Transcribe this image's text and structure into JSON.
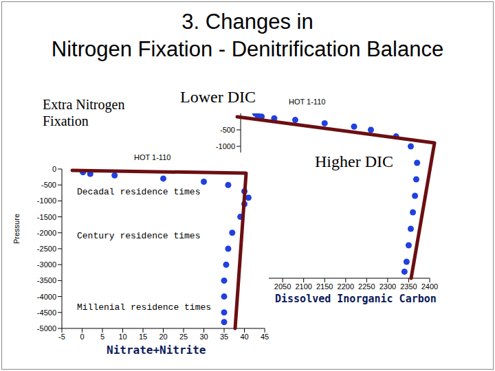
{
  "title_lines": [
    "3. Changes in",
    "Nitrogen Fixation - Denitrification Balance"
  ],
  "annotations": [
    "Extra Nitrogen Fixation",
    "Lower DIC",
    "Higher DIC"
  ],
  "chart_data": [
    {
      "type": "scatter",
      "title": "HOT 1-110",
      "x_label": "Nitrate+Nitrite",
      "y_label": "Pressure",
      "x": [
        0,
        0,
        0.2,
        2,
        8,
        20,
        30,
        36,
        40,
        41,
        40,
        39,
        37,
        36,
        35.5,
        35,
        35,
        35,
        35
      ],
      "values": [
        0,
        -50,
        -100,
        -150,
        -200,
        -300,
        -400,
        -500,
        -700,
        -900,
        -1100,
        -1500,
        -2000,
        -2500,
        -3000,
        -3500,
        -4000,
        -4500,
        -4800
      ],
      "xlim": [
        -5,
        45
      ],
      "xticks": [
        -5,
        0,
        5,
        10,
        15,
        20,
        25,
        30,
        35,
        40,
        45
      ],
      "ylim": [
        -5000,
        0
      ],
      "yticks": [
        0,
        -500,
        -1000,
        -1500,
        -2000,
        -2500,
        -3000,
        -3500,
        -4000,
        -4500,
        -5000
      ],
      "color": "#2040e0",
      "marker": "circle",
      "grid": false,
      "annotations": [
        "Decadal residence times",
        "Century residence times",
        "Millenial residence times"
      ]
    },
    {
      "type": "scatter",
      "title": "HOT 1-110",
      "x_label": "Dissolved Inorganic Carbon",
      "x": [
        1985,
        1990,
        2000,
        2030,
        2080,
        2150,
        2220,
        2260,
        2320,
        2355,
        2370,
        2368,
        2365,
        2360,
        2355,
        2350,
        2345,
        2340
      ],
      "values": [
        0,
        -50,
        -100,
        -150,
        -200,
        -300,
        -400,
        -500,
        -700,
        -1000,
        -1500,
        -2000,
        -2500,
        -3000,
        -3500,
        -4000,
        -4500,
        -4800
      ],
      "xlim": [
        1950,
        2400
      ],
      "xticks": [
        2050,
        2100,
        2150,
        2200,
        2250,
        2300,
        2350,
        2400
      ],
      "ylim": [
        -5000,
        0
      ],
      "yticks": [
        -500,
        -1000
      ],
      "color": "#2040e0",
      "marker": "circle",
      "grid": false
    }
  ]
}
